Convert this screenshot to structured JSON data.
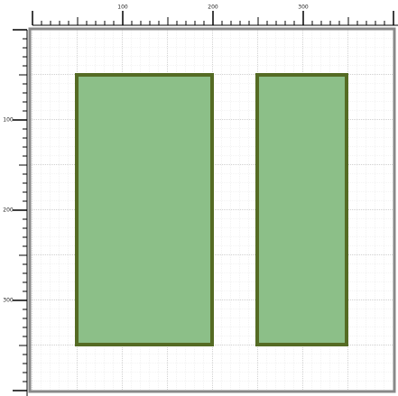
{
  "rulers": {
    "top": {
      "labels": [
        100,
        200,
        300
      ]
    },
    "left": {
      "labels": [
        100,
        200,
        300
      ]
    }
  }
}
